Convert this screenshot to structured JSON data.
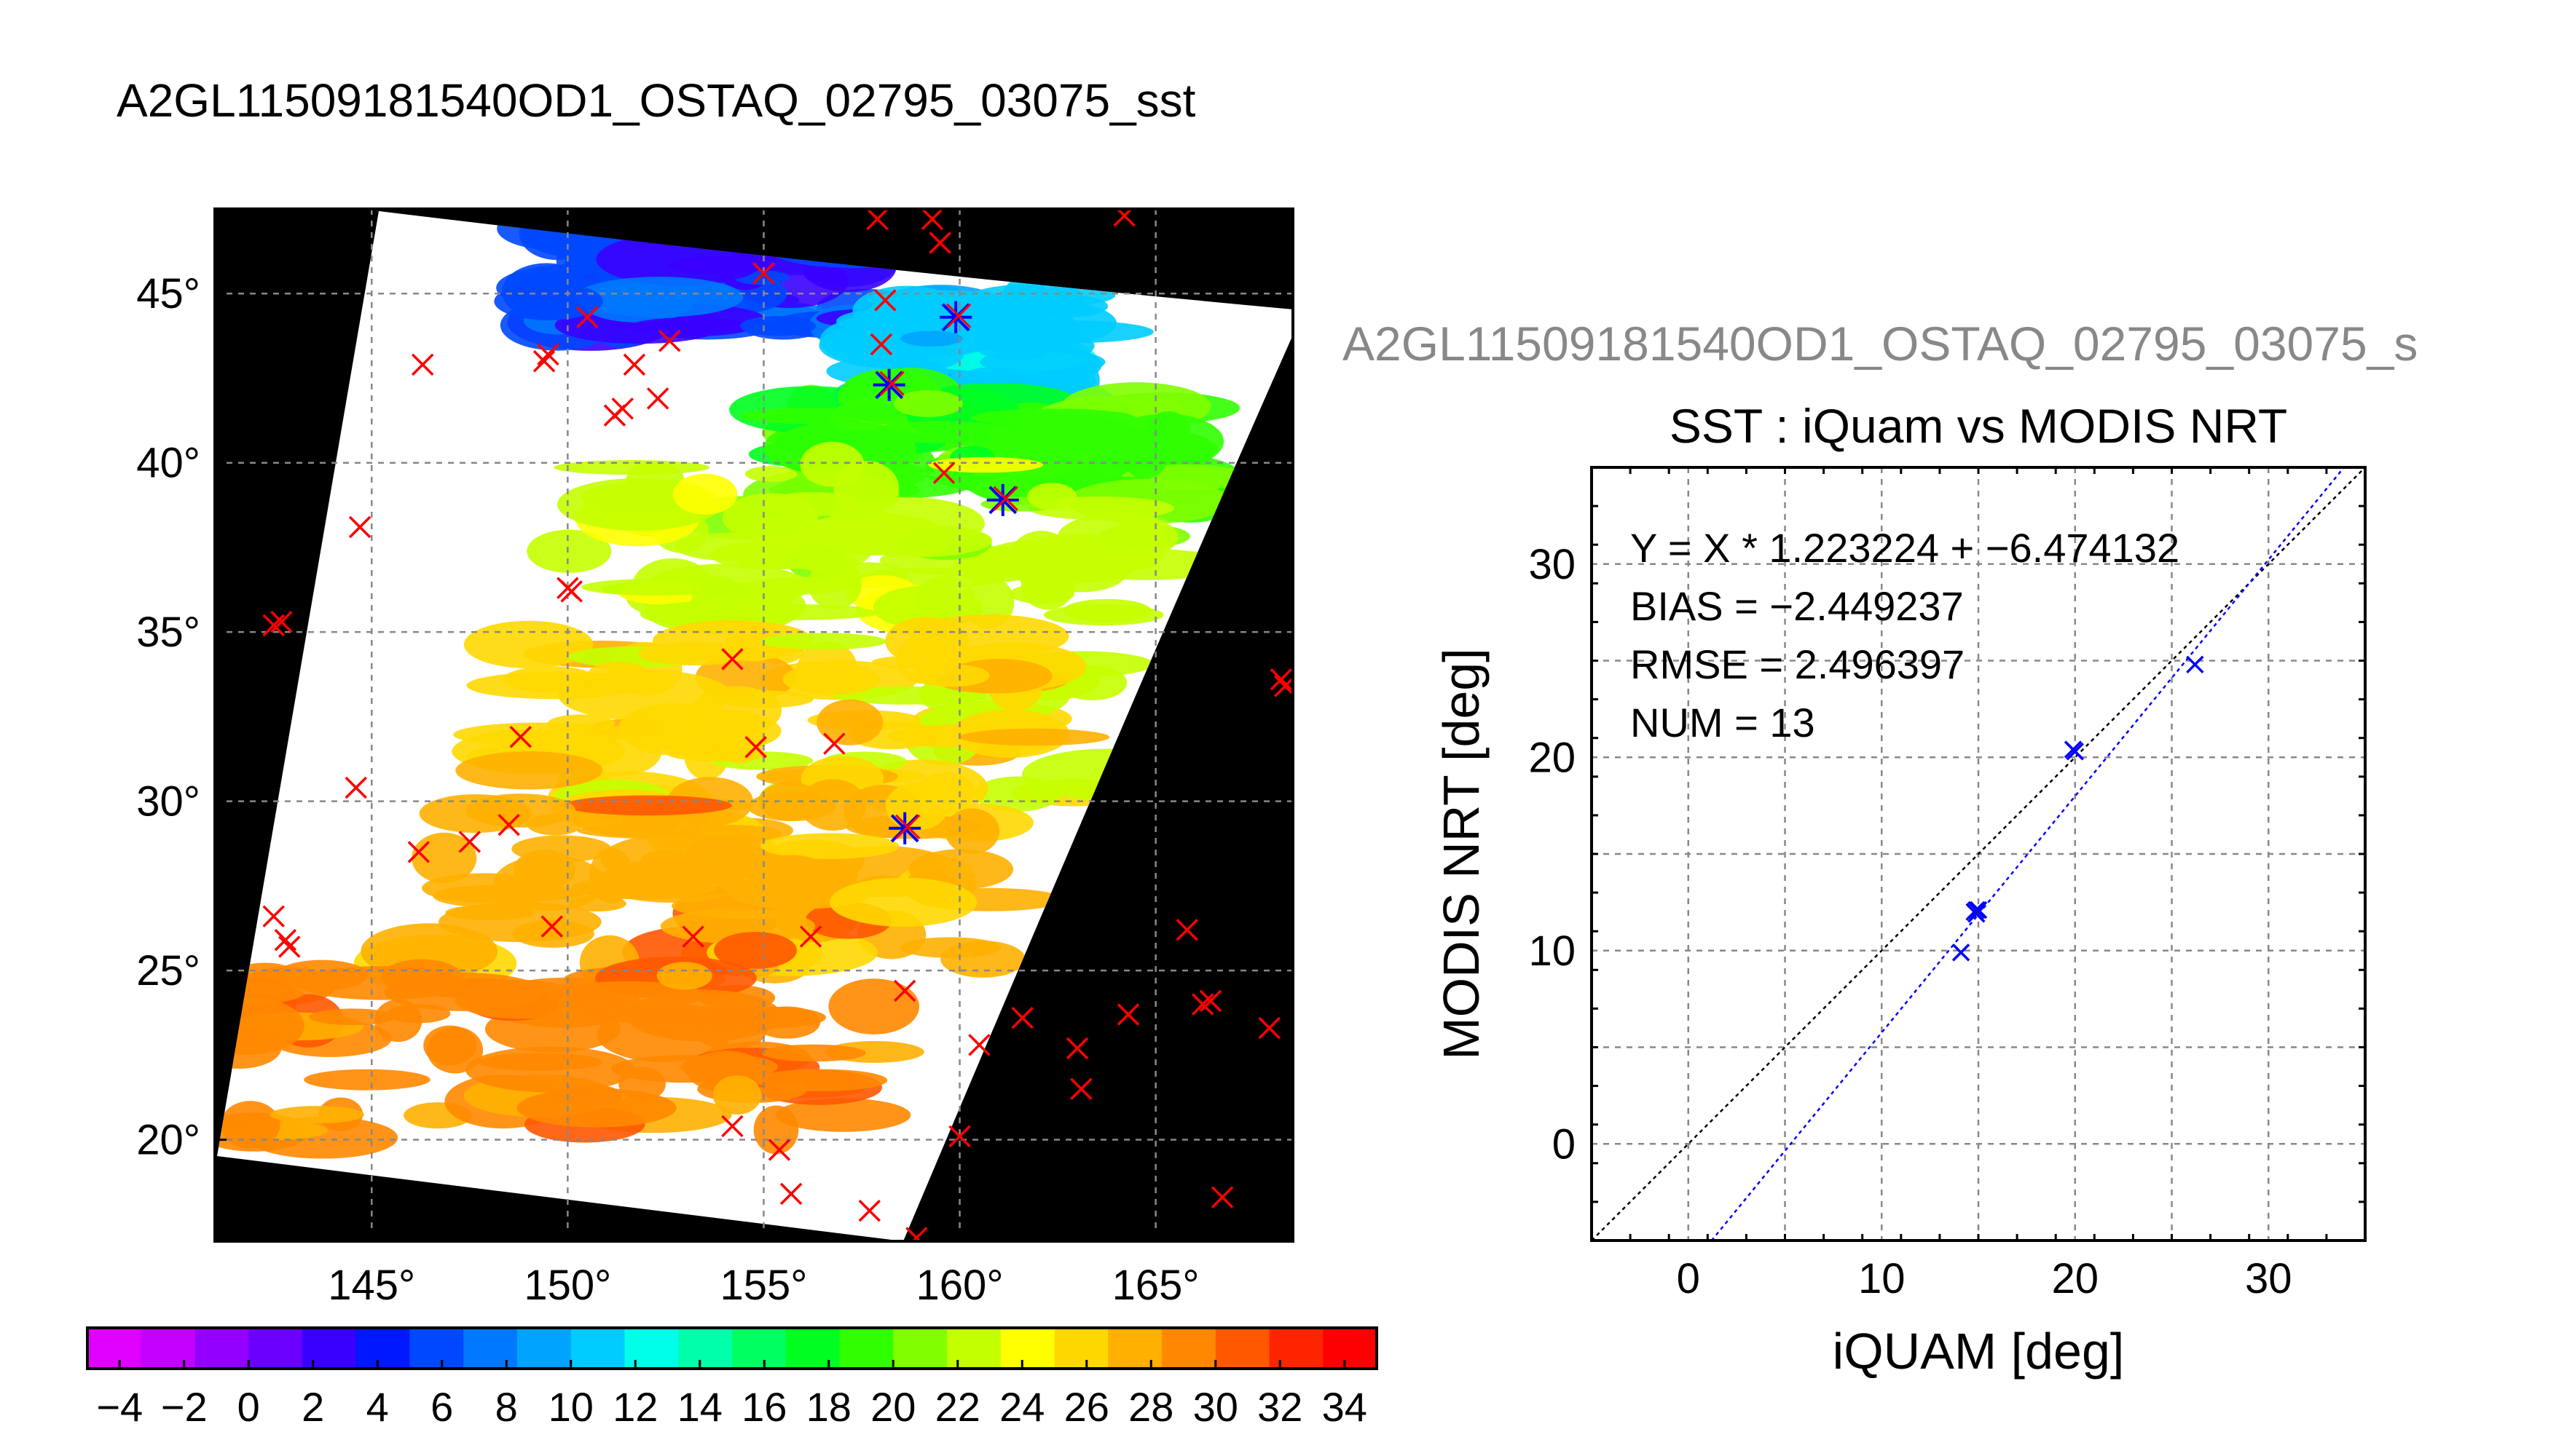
{
  "page_title": "A2GL11509181540OD1_OSTAQ_02795_03075_sst",
  "chart_data": [
    {
      "type": "map",
      "title": "",
      "x_ticks": [
        "145°",
        "150°",
        "155°",
        "160°",
        "165°"
      ],
      "x_tick_values": [
        145,
        150,
        155,
        160,
        165
      ],
      "y_ticks": [
        "45°",
        "40°",
        "35°",
        "30°",
        "25°",
        "20°"
      ],
      "y_tick_values": [
        45,
        40,
        35,
        30,
        25,
        20
      ],
      "xlim": [
        141,
        168.5
      ],
      "ylim": [
        17,
        47.5
      ],
      "grid": true,
      "background_color": "#000000",
      "swath_color": "#ffffff",
      "marker_color": "#ff0000",
      "matchup_marker_color": "#0000ff",
      "sst_bands": [
        {
          "lat": [
            44,
            47
          ],
          "lon": [
            149,
            158
          ],
          "value": 5
        },
        {
          "lat": [
            41.5,
            45
          ],
          "lon": [
            158,
            163
          ],
          "value": 11
        },
        {
          "lat": [
            39,
            42
          ],
          "lon": [
            156,
            166
          ],
          "value": 19
        },
        {
          "lat": [
            35.5,
            40
          ],
          "lon": [
            150,
            165
          ],
          "value": 22
        },
        {
          "lat": [
            30,
            35
          ],
          "lon": [
            149,
            164
          ],
          "value": 25
        },
        {
          "lat": [
            25,
            30
          ],
          "lon": [
            146,
            161
          ],
          "value": 28
        },
        {
          "lat": [
            20,
            25
          ],
          "lon": [
            141,
            158
          ],
          "value": 29
        }
      ],
      "buoy_points": [
        {
          "lon": 142.5,
          "lat": 35.2
        },
        {
          "lon": 142.7,
          "lat": 35.3
        },
        {
          "lon": 144.7,
          "lat": 38.1
        },
        {
          "lon": 146.3,
          "lat": 42.9
        },
        {
          "lon": 149.5,
          "lat": 43.2
        },
        {
          "lon": 149.4,
          "lat": 43.0
        },
        {
          "lon": 150.5,
          "lat": 44.3
        },
        {
          "lon": 151.2,
          "lat": 41.4
        },
        {
          "lon": 151.4,
          "lat": 41.6
        },
        {
          "lon": 151.7,
          "lat": 42.9
        },
        {
          "lon": 152.3,
          "lat": 41.9
        },
        {
          "lon": 152.6,
          "lat": 43.6
        },
        {
          "lon": 155.0,
          "lat": 45.6
        },
        {
          "lon": 150.0,
          "lat": 36.3
        },
        {
          "lon": 150.1,
          "lat": 36.2
        },
        {
          "lon": 154.2,
          "lat": 34.2
        },
        {
          "lon": 148.8,
          "lat": 31.9
        },
        {
          "lon": 144.6,
          "lat": 30.4
        },
        {
          "lon": 146.2,
          "lat": 28.5
        },
        {
          "lon": 147.5,
          "lat": 28.8
        },
        {
          "lon": 148.5,
          "lat": 29.3
        },
        {
          "lon": 142.5,
          "lat": 26.6
        },
        {
          "lon": 142.8,
          "lat": 25.9
        },
        {
          "lon": 142.9,
          "lat": 25.7
        },
        {
          "lon": 149.6,
          "lat": 26.3
        },
        {
          "lon": 153.2,
          "lat": 26.0
        },
        {
          "lon": 154.8,
          "lat": 31.6
        },
        {
          "lon": 156.8,
          "lat": 31.7
        },
        {
          "lon": 156.2,
          "lat": 26.0
        },
        {
          "lon": 158.0,
          "lat": 43.5
        },
        {
          "lon": 158.1,
          "lat": 44.8
        },
        {
          "lon": 157.9,
          "lat": 47.2
        },
        {
          "lon": 159.3,
          "lat": 47.2
        },
        {
          "lon": 159.5,
          "lat": 46.5
        },
        {
          "lon": 164.2,
          "lat": 47.3
        },
        {
          "lon": 159.6,
          "lat": 39.7
        },
        {
          "lon": 158.6,
          "lat": 24.4
        },
        {
          "lon": 160.5,
          "lat": 22.8
        },
        {
          "lon": 161.6,
          "lat": 23.6
        },
        {
          "lon": 163.0,
          "lat": 22.7
        },
        {
          "lon": 163.1,
          "lat": 21.5
        },
        {
          "lon": 164.3,
          "lat": 23.7
        },
        {
          "lon": 165.8,
          "lat": 26.2
        },
        {
          "lon": 166.2,
          "lat": 24.0
        },
        {
          "lon": 166.4,
          "lat": 24.1
        },
        {
          "lon": 167.9,
          "lat": 23.3
        },
        {
          "lon": 166.7,
          "lat": 18.3
        },
        {
          "lon": 168.2,
          "lat": 33.6
        },
        {
          "lon": 168.3,
          "lat": 33.4
        },
        {
          "lon": 154.2,
          "lat": 20.4
        },
        {
          "lon": 155.4,
          "lat": 19.7
        },
        {
          "lon": 155.7,
          "lat": 18.4
        },
        {
          "lon": 157.7,
          "lat": 17.9
        },
        {
          "lon": 158.9,
          "lat": 17.1
        },
        {
          "lon": 160.0,
          "lat": 20.1
        }
      ],
      "matchup_points": [
        {
          "lon": 159.9,
          "lat": 44.3
        },
        {
          "lon": 158.2,
          "lat": 42.3
        },
        {
          "lon": 161.1,
          "lat": 38.9
        },
        {
          "lon": 158.6,
          "lat": 29.2
        }
      ]
    },
    {
      "type": "scatter",
      "header": "A2GL11509181540OD1_OSTAQ_02795_03075_s",
      "title": "SST : iQuam vs MODIS NRT",
      "xlabel": "iQUAM [deg]",
      "ylabel": "MODIS NRT [deg]",
      "xlim": [
        -5,
        35
      ],
      "ylim": [
        -5,
        35
      ],
      "x_ticks": [
        0,
        10,
        20,
        30
      ],
      "y_ticks": [
        0,
        10,
        20,
        30
      ],
      "grid": true,
      "stats": [
        "Y = X * 1.223224 + −6.474132",
        "BIAS = −2.449237",
        "RMSE = 2.496397",
        "NUM = 13"
      ],
      "fit": {
        "slope": 1.223224,
        "intercept": -6.474132
      },
      "identity_line": true,
      "points": [
        {
          "x": 14.1,
          "y": 9.9
        },
        {
          "x": 14.8,
          "y": 12.0
        },
        {
          "x": 14.9,
          "y": 12.1
        },
        {
          "x": 14.9,
          "y": 11.9
        },
        {
          "x": 15.0,
          "y": 12.1
        },
        {
          "x": 19.9,
          "y": 20.4
        },
        {
          "x": 20.0,
          "y": 20.3
        },
        {
          "x": 26.2,
          "y": 24.8
        }
      ],
      "point_color": "#0000ff"
    }
  ],
  "colorbar": {
    "ticks": [
      "−4",
      "−2",
      "0",
      "2",
      "4",
      "6",
      "8",
      "10",
      "12",
      "14",
      "16",
      "18",
      "20",
      "22",
      "24",
      "26",
      "28",
      "30",
      "32",
      "34"
    ],
    "range": [
      -5,
      35
    ],
    "colors": [
      "#e000ff",
      "#c300ff",
      "#9400ff",
      "#6a00ff",
      "#3a00ff",
      "#0018ff",
      "#0048ff",
      "#0078ff",
      "#00a4ff",
      "#00ccff",
      "#00ffe8",
      "#00ffaa",
      "#00ff60",
      "#00ff20",
      "#30ff00",
      "#80ff00",
      "#c4ff00",
      "#ffff00",
      "#ffd800",
      "#ffb000",
      "#ff8800",
      "#ff5800",
      "#ff2400",
      "#ff0000"
    ]
  }
}
